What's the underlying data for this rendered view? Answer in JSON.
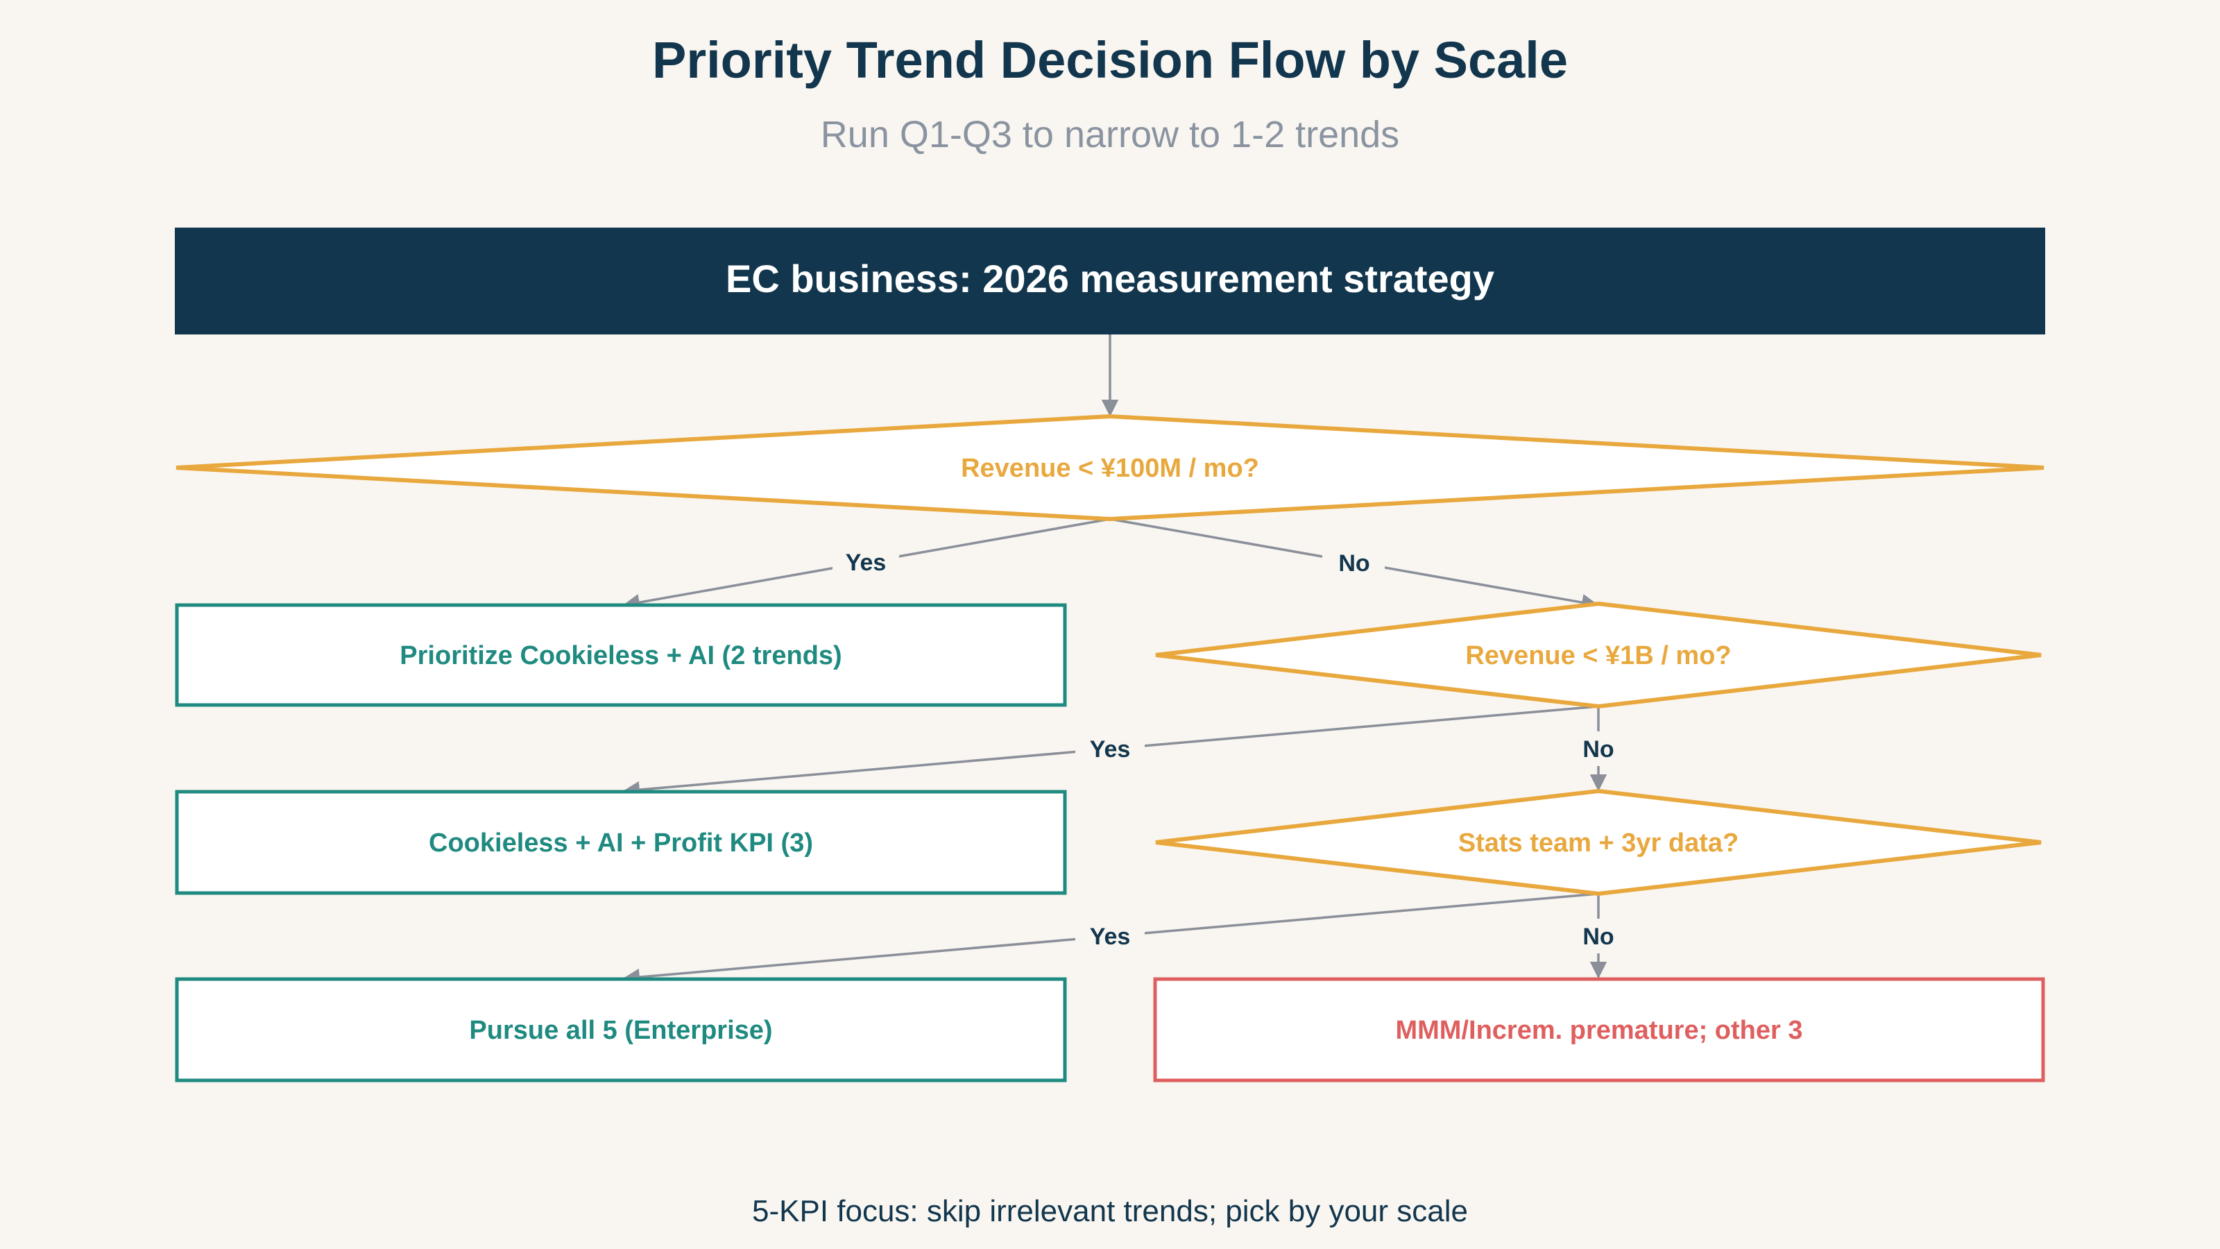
{
  "title": "Priority Trend Decision Flow by Scale",
  "subtitle": "Run Q1-Q3 to narrow to 1-2 trends",
  "footer": "5-KPI focus: skip irrelevant trends; pick by your scale",
  "colors": {
    "background": "#f9f6f1",
    "navy": "#12364d",
    "amber": "#e8a83e",
    "teal": "#1f8a80",
    "red": "#df5f5f",
    "connector": "#8a8f99",
    "subtitle": "#8a93a0"
  },
  "nodes": {
    "start": "EC business: 2026 measurement strategy",
    "q1": "Revenue < ¥100M / mo?",
    "q2": "Revenue < ¥1B / mo?",
    "q3": "Stats team + 3yr data?",
    "r1": "Prioritize Cookieless + AI (2 trends)",
    "r2": "Cookieless + AI + Profit KPI (3)",
    "r3": "Pursue all 5 (Enterprise)",
    "r4": "MMM/Increm. premature; other 3"
  },
  "edges": {
    "q1_yes": "Yes",
    "q1_no": "No",
    "q2_yes": "Yes",
    "q2_no": "No",
    "q3_yes": "Yes",
    "q3_no": "No"
  }
}
